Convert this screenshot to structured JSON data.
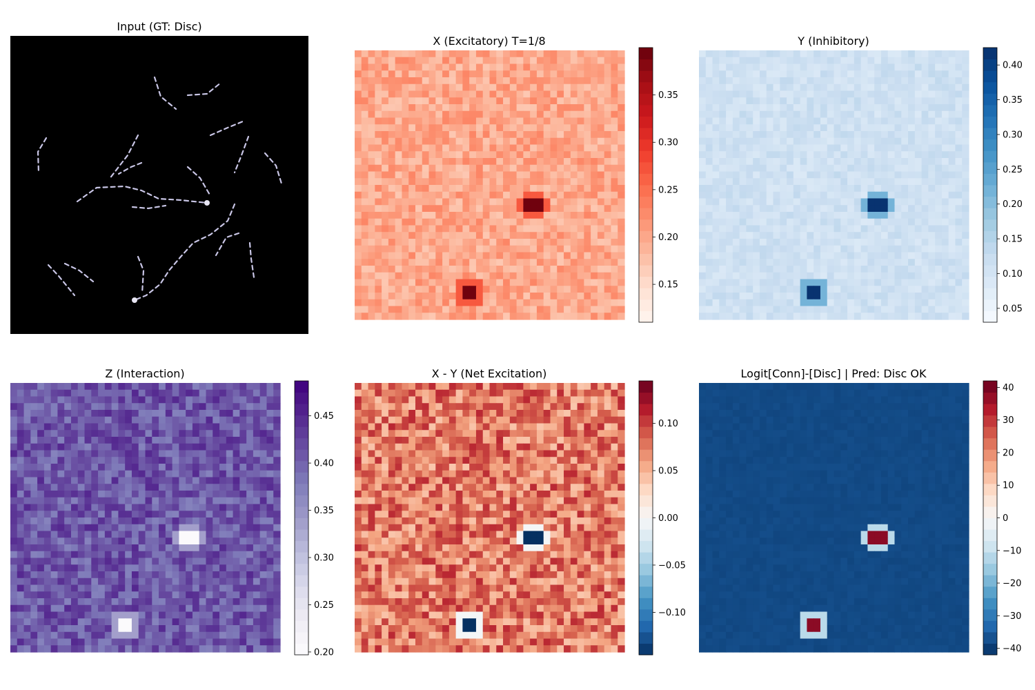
{
  "figure": {
    "panels": [
      {
        "id": "input",
        "title": "Input (GT: Disc)",
        "kind": "input",
        "background": "#000000",
        "dash_color": "#c9c6e6"
      },
      {
        "id": "x",
        "title": "X (Excitatory) T=1/8",
        "colormap": "Reds",
        "base": 0.2,
        "spread": 0.03,
        "hotspot_value": 0.395,
        "colorbar": {
          "ticks": [
            "0.15",
            "0.20",
            "0.25",
            "0.30",
            "0.35"
          ],
          "min": 0.11,
          "max": 0.4
        }
      },
      {
        "id": "y",
        "title": "Y (Inhibitory)",
        "colormap": "Blues",
        "base": 0.11,
        "spread": 0.025,
        "hotspot_value": 0.42,
        "colorbar": {
          "ticks": [
            "0.05",
            "0.10",
            "0.15",
            "0.20",
            "0.25",
            "0.30",
            "0.35",
            "0.40"
          ],
          "min": 0.03,
          "max": 0.425
        }
      },
      {
        "id": "z",
        "title": "Z (Interaction)",
        "colormap": "Purples",
        "base": 0.41,
        "spread": 0.04,
        "hotspot_value": 0.2,
        "colorbar": {
          "ticks": [
            "0.20",
            "0.25",
            "0.30",
            "0.35",
            "0.40",
            "0.45"
          ],
          "min": 0.197,
          "max": 0.487
        }
      },
      {
        "id": "xy",
        "title": "X - Y (Net Excitation)",
        "colormap": "RdBu_r",
        "base": 0.075,
        "spread": 0.035,
        "hotspot_value": -0.145,
        "colorbar": {
          "ticks": [
            "−0.10",
            "−0.05",
            "0.00",
            "0.05",
            "0.10"
          ],
          "min": -0.145,
          "max": 0.145
        }
      },
      {
        "id": "logit",
        "title": "Logit[Conn]-[Disc] | Pred: Disc OK",
        "colormap": "RdBu_r",
        "base": -38,
        "spread": 0.6,
        "hotspot_value": 38,
        "colorbar": {
          "ticks": [
            "−40",
            "−30",
            "−20",
            "−10",
            "0",
            "10",
            "20",
            "30",
            "40"
          ],
          "min": -42,
          "max": 42
        }
      }
    ],
    "hotspots": [
      {
        "row": 0.56,
        "col": 0.65
      },
      {
        "row": 0.89,
        "col": 0.41
      }
    ]
  }
}
